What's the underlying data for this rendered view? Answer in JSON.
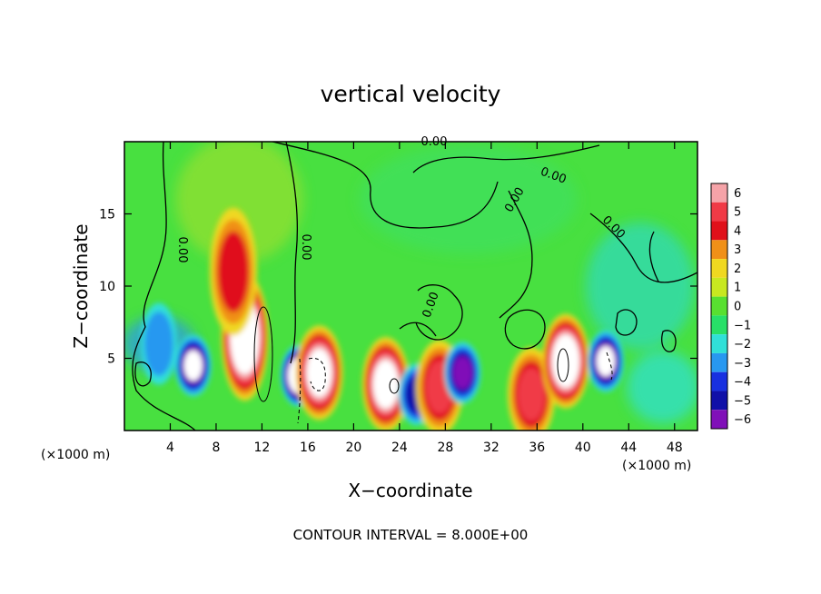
{
  "chart_data": {
    "type": "heatmap",
    "title": "vertical velocity",
    "xlabel": "X−coordinate",
    "ylabel": "Z−coordinate",
    "x_unit": "(×1000 m)",
    "y_unit": "(×1000 m)",
    "xlim": [
      0,
      50
    ],
    "ylim": [
      0,
      20
    ],
    "x_ticks": [
      4,
      8,
      12,
      16,
      20,
      24,
      28,
      32,
      36,
      40,
      44,
      48
    ],
    "x_tick_labels": [
      "4",
      "8",
      "12",
      "16",
      "20",
      "24",
      "28",
      "32",
      "36",
      "40",
      "44",
      "48"
    ],
    "y_ticks": [
      5,
      10,
      15
    ],
    "y_tick_labels": [
      "5",
      "10",
      "15"
    ],
    "colorbar": {
      "values": [
        6,
        5,
        4,
        3,
        2,
        1,
        0,
        -1,
        -2,
        -3,
        -4,
        -5,
        -6
      ],
      "labels": [
        "6",
        "5",
        "4",
        "3",
        "2",
        "1",
        "0",
        "−1",
        "−2",
        "−3",
        "−4",
        "−5",
        "−6"
      ],
      "colors": [
        "#f5a3a8",
        "#f03a46",
        "#e0101a",
        "#f09018",
        "#f0d820",
        "#c8e820",
        "#58e030",
        "#28e068",
        "#30e0d8",
        "#2898f0",
        "#1830e0",
        "#1010a8",
        "#8010b8"
      ]
    },
    "contour_interval_text": "CONTOUR INTERVAL = 8.000E+00",
    "contour_labels": [
      "0.00",
      "0.00",
      "0.00",
      "0.00",
      "0.00",
      "0.00",
      "0.00"
    ],
    "features": [
      {
        "kind": "updraft",
        "x": 10.5,
        "z": 6.5,
        "peak": 10
      },
      {
        "kind": "updraft",
        "x": 9.5,
        "z": 11,
        "peak": 4
      },
      {
        "kind": "downdraft",
        "x": 15.2,
        "z": 3.8,
        "peak": -9
      },
      {
        "kind": "updraft",
        "x": 17,
        "z": 4,
        "peak": 8
      },
      {
        "kind": "updraft",
        "x": 22.8,
        "z": 3.2,
        "peak": 8
      },
      {
        "kind": "downdraft",
        "x": 6,
        "z": 4.5,
        "peak": -7
      },
      {
        "kind": "downdraft",
        "x": 25.5,
        "z": 2.5,
        "peak": -5
      },
      {
        "kind": "updraft",
        "x": 27.5,
        "z": 3,
        "peak": 5
      },
      {
        "kind": "downdraft",
        "x": 29.5,
        "z": 4,
        "peak": -6
      },
      {
        "kind": "updraft",
        "x": 35.5,
        "z": 2.5,
        "peak": 5
      },
      {
        "kind": "updraft",
        "x": 38.5,
        "z": 4.8,
        "peak": 9
      },
      {
        "kind": "downdraft",
        "x": 42,
        "z": 4.8,
        "peak": -7
      },
      {
        "kind": "downdraft",
        "x": 3,
        "z": 6,
        "peak": -3
      }
    ]
  }
}
